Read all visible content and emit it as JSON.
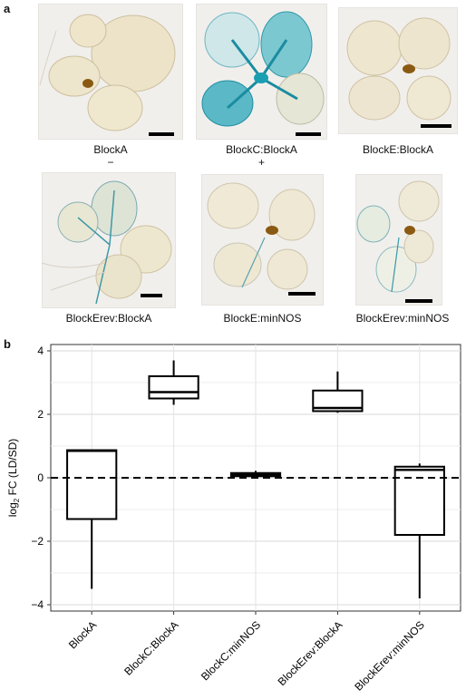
{
  "panel_a": {
    "letter": "a",
    "images": [
      {
        "caption": "BlockA",
        "sign": "−",
        "stain": "none"
      },
      {
        "caption": "BlockC:BlockA",
        "sign": "+",
        "stain": "strong"
      },
      {
        "caption": "BlockE:BlockA",
        "sign": "",
        "stain": "none"
      },
      {
        "caption": "BlockErev:BlockA",
        "sign": "",
        "stain": "moderate"
      },
      {
        "caption": "BlockE:minNOS",
        "sign": "",
        "stain": "weak"
      },
      {
        "caption": "BlockErev:minNOS",
        "sign": "",
        "stain": "weak"
      }
    ]
  },
  "panel_b": {
    "letter": "b"
  },
  "chart_data": {
    "type": "box",
    "ylabel": "log2 FC (LD/SD)",
    "ylabel_main": "log",
    "ylabel_sub": "2",
    "ylabel_rest": " FC (LD/SD)",
    "ylim": [
      -4.2,
      4.2
    ],
    "yticks": [
      -4,
      -2,
      0,
      2,
      4
    ],
    "ytick_labels": [
      "−4",
      "−2",
      "0",
      "2",
      "4"
    ],
    "reference_line": 0,
    "grid": true,
    "categories": [
      "BlockA",
      "BlockC:BlockA",
      "BlockC:minNOS",
      "BlockErev:BlockA",
      "BlockErev:minNOS"
    ],
    "boxes": [
      {
        "min": -3.5,
        "q1": -1.3,
        "median": 0.85,
        "q3": 0.87,
        "max": 0.87
      },
      {
        "min": 2.3,
        "q1": 2.5,
        "median": 2.7,
        "q3": 3.2,
        "max": 3.7
      },
      {
        "min": 0.03,
        "q1": 0.05,
        "median": 0.1,
        "q3": 0.15,
        "max": 0.22
      },
      {
        "min": 2.05,
        "q1": 2.1,
        "median": 2.2,
        "q3": 2.75,
        "max": 3.35
      },
      {
        "min": -3.8,
        "q1": -1.8,
        "median": 0.25,
        "q3": 0.35,
        "max": 0.45
      }
    ]
  }
}
